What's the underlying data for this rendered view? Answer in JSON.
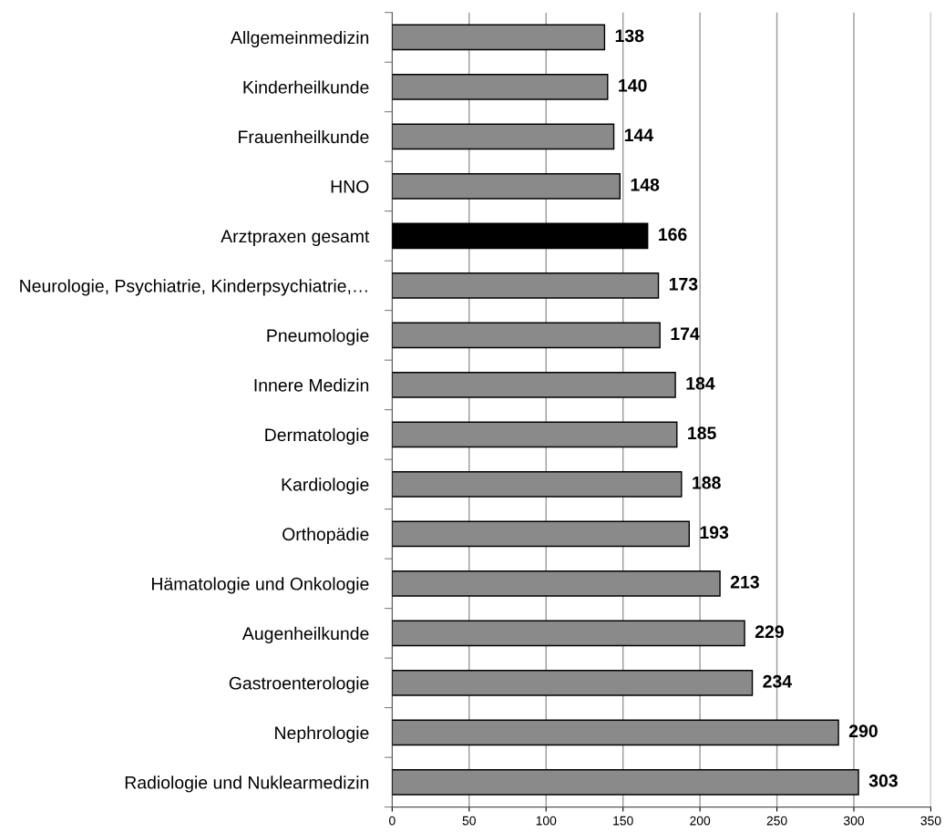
{
  "chart_data": {
    "type": "bar",
    "orientation": "horizontal",
    "categories": [
      "Allgemeinmedizin",
      "Kinderheilkunde",
      "Frauenheilkunde",
      "HNO",
      "Arztpraxen gesamt",
      "Neurologie, Psychiatrie, Kinderpsychiatrie,…",
      "Pneumologie",
      "Innere Medizin",
      "Dermatologie",
      "Kardiologie",
      "Orthopädie",
      "Hämatologie und Onkologie",
      "Augenheilkunde",
      "Gastroenterologie",
      "Nephrologie",
      "Radiologie und Nuklearmedizin"
    ],
    "values": [
      138,
      140,
      144,
      148,
      166,
      173,
      174,
      184,
      185,
      188,
      193,
      213,
      229,
      234,
      290,
      303
    ],
    "colors": [
      "#8a8a8a",
      "#8a8a8a",
      "#8a8a8a",
      "#8a8a8a",
      "#000000",
      "#8a8a8a",
      "#8a8a8a",
      "#8a8a8a",
      "#8a8a8a",
      "#8a8a8a",
      "#8a8a8a",
      "#8a8a8a",
      "#8a8a8a",
      "#8a8a8a",
      "#8a8a8a",
      "#8a8a8a"
    ],
    "xlim": [
      0,
      350
    ],
    "xticks": [
      0,
      50,
      100,
      150,
      200,
      250,
      300,
      350
    ],
    "grid": "x",
    "data_labels": true
  }
}
